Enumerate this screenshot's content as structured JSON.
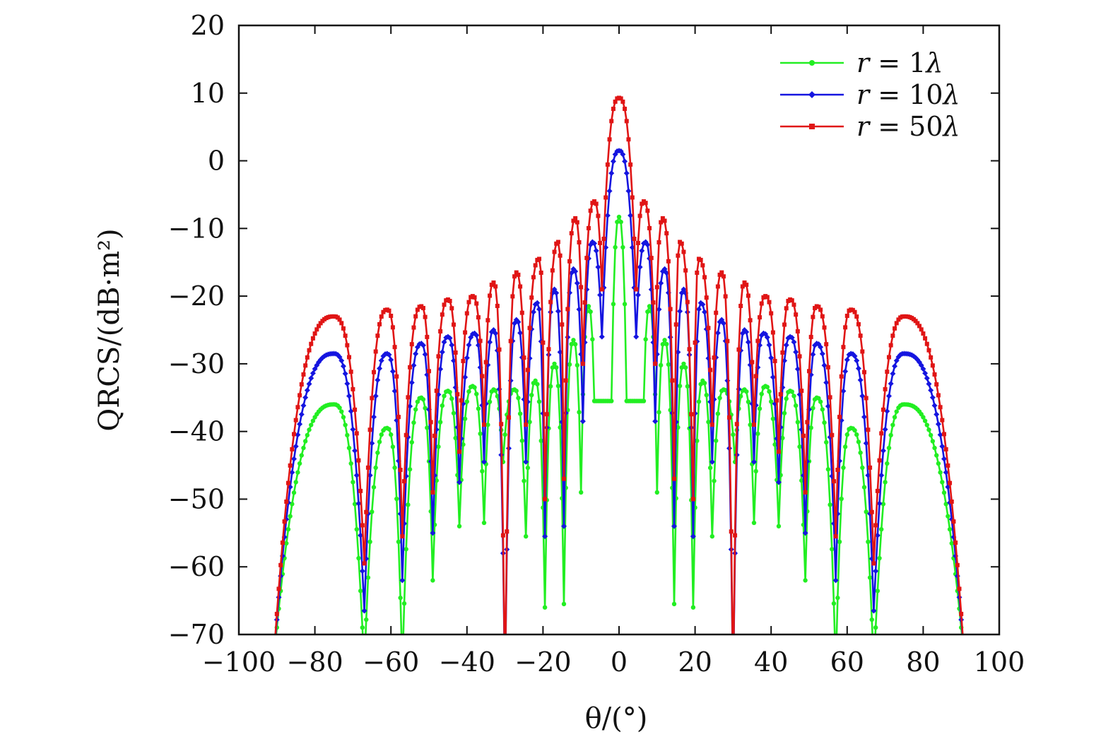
{
  "chart_data": {
    "type": "line",
    "xlabel": "θ/(°)",
    "ylabel": "QRCS/(dB·m²)",
    "xlim": [
      -100,
      100
    ],
    "ylim": [
      -70,
      20
    ],
    "xticks": [
      -100,
      -80,
      -60,
      -40,
      -20,
      0,
      20,
      40,
      60,
      80,
      100
    ],
    "yticks": [
      20,
      10,
      0,
      -10,
      -20,
      -30,
      -40,
      -50,
      -60,
      -70
    ],
    "xtick_labels": [
      "−100",
      "−80",
      "−60",
      "−40",
      "−20",
      "0",
      "20",
      "40",
      "60",
      "80",
      "100"
    ],
    "ytick_labels": [
      "20",
      "10",
      "0",
      "−10",
      "−20",
      "−30",
      "−40",
      "−50",
      "−60",
      "−70"
    ],
    "grid": false,
    "legend_position": "top-right",
    "series": [
      {
        "name": "r = 1λ",
        "legend_var": "r",
        "legend_eq": " = ",
        "legend_num": "1",
        "legend_unit": "λ",
        "color": "#22ee22",
        "marker": "circle",
        "peak": -8.3,
        "lobes": [
          {
            "c": 4.0,
            "h": -35.5
          },
          {
            "c": 8.0,
            "h": -21.5
          },
          {
            "c": 12.0,
            "h": -26.5
          },
          {
            "c": 17.0,
            "h": -30.0
          },
          {
            "c": 22.0,
            "h": -32.5
          },
          {
            "c": 27.5,
            "h": -33.8
          },
          {
            "c": 33.0,
            "h": -33.8
          },
          {
            "c": 38.5,
            "h": -33.3
          },
          {
            "c": 45.0,
            "h": -34.0
          },
          {
            "c": 52.0,
            "h": -35.0
          },
          {
            "c": 61.0,
            "h": -39.5
          },
          {
            "c": 75.0,
            "h": -36.0
          }
        ],
        "nulls": [
          {
            "x": 2.0,
            "d": -35.5
          },
          {
            "x": 6.5,
            "d": -35.5
          },
          {
            "x": 10.0,
            "d": -49.0
          },
          {
            "x": 14.5,
            "d": -65.5
          },
          {
            "x": 19.5,
            "d": -66.0
          },
          {
            "x": 24.5,
            "d": -55.5
          },
          {
            "x": 30.5,
            "d": -44.5
          },
          {
            "x": 35.5,
            "d": -53.5
          },
          {
            "x": 42.0,
            "d": -54.0
          },
          {
            "x": 49.0,
            "d": -62.0
          },
          {
            "x": 57.0,
            "d": -75.0
          },
          {
            "x": 67.0,
            "d": -75.0
          },
          {
            "x": 91.0,
            "d": -75.0
          }
        ]
      },
      {
        "name": "r = 10λ",
        "legend_var": "r",
        "legend_eq": " = ",
        "legend_num": "10",
        "legend_unit": "λ",
        "color": "#1515e0",
        "marker": "diamond",
        "peak": 1.5,
        "lobes": [
          {
            "c": 7.0,
            "h": -12.0
          },
          {
            "c": 12.0,
            "h": -16.0
          },
          {
            "c": 17.0,
            "h": -19.0
          },
          {
            "c": 21.5,
            "h": -21.0
          },
          {
            "c": 27.0,
            "h": -23.5
          },
          {
            "c": 33.0,
            "h": -25.0
          },
          {
            "c": 38.0,
            "h": -25.5
          },
          {
            "c": 45.0,
            "h": -26.0
          },
          {
            "c": 52.0,
            "h": -27.0
          },
          {
            "c": 61.0,
            "h": -28.5
          },
          {
            "c": 75.0,
            "h": -28.5
          }
        ],
        "nulls": [
          {
            "x": 4.5,
            "d": -26.0
          },
          {
            "x": 9.5,
            "d": -38.5
          },
          {
            "x": 14.5,
            "d": -54.0
          },
          {
            "x": 19.5,
            "d": -55.5
          },
          {
            "x": 24.5,
            "d": -44.5
          },
          {
            "x": 30.0,
            "d": -78.0
          },
          {
            "x": 35.5,
            "d": -44.5
          },
          {
            "x": 42.0,
            "d": -47.5
          },
          {
            "x": 49.0,
            "d": -55.0
          },
          {
            "x": 57.0,
            "d": -62.0
          },
          {
            "x": 67.0,
            "d": -66.5
          },
          {
            "x": 91.0,
            "d": -75.0
          }
        ]
      },
      {
        "name": "r = 50λ",
        "legend_var": "r",
        "legend_eq": " = ",
        "legend_num": "50",
        "legend_unit": "λ",
        "color": "#e01515",
        "marker": "square",
        "peak": 9.3,
        "lobes": [
          {
            "c": 6.5,
            "h": -6.0
          },
          {
            "c": 11.5,
            "h": -8.5
          },
          {
            "c": 16.0,
            "h": -12.0
          },
          {
            "c": 21.0,
            "h": -14.5
          },
          {
            "c": 27.0,
            "h": -16.5
          },
          {
            "c": 33.0,
            "h": -18.0
          },
          {
            "c": 38.5,
            "h": -20.0
          },
          {
            "c": 45.0,
            "h": -20.5
          },
          {
            "c": 52.0,
            "h": -21.5
          },
          {
            "c": 61.0,
            "h": -22.0
          },
          {
            "c": 75.0,
            "h": -23.0
          }
        ],
        "nulls": [
          {
            "x": 4.5,
            "d": -19.0
          },
          {
            "x": 9.5,
            "d": -30.0
          },
          {
            "x": 14.5,
            "d": -47.0
          },
          {
            "x": 19.5,
            "d": -50.0
          },
          {
            "x": 24.5,
            "d": -39.0
          },
          {
            "x": 30.0,
            "d": -78.0
          },
          {
            "x": 35.5,
            "d": -39.0
          },
          {
            "x": 42.0,
            "d": -43.0
          },
          {
            "x": 49.0,
            "d": -49.0
          },
          {
            "x": 57.0,
            "d": -55.5
          },
          {
            "x": 67.0,
            "d": -59.5
          },
          {
            "x": 91.0,
            "d": -75.0
          }
        ]
      }
    ]
  }
}
